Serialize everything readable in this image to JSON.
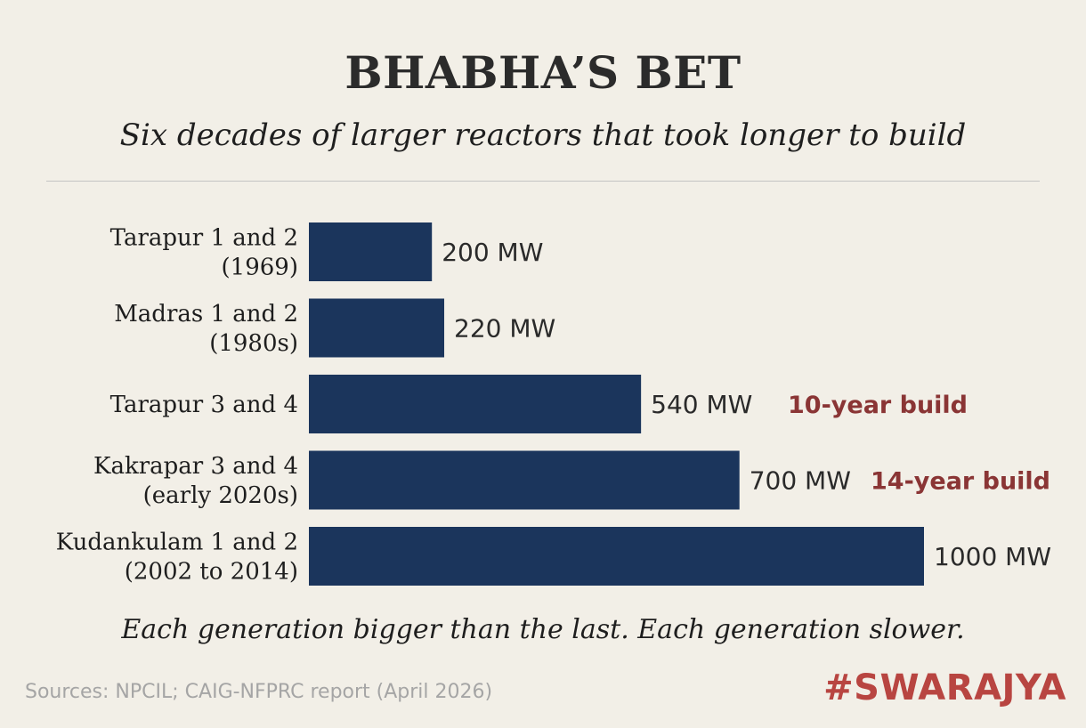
{
  "title": "BHABHA’S BET",
  "subtitle": "Six decades of larger reactors that took longer to build",
  "caption": "Each generation bigger than the last. Each generation slower.",
  "sources": "Sources: NPCIL; CAIG-NFPRC report (April 2026)",
  "brand": "#SWARAJYA",
  "colors": {
    "bar": "#1b355c",
    "note": "#8a3535",
    "brand": "#b84541",
    "background": "#f2efe7"
  },
  "chart_data": {
    "type": "bar",
    "orientation": "horizontal",
    "categories": [
      [
        "Tarapur 1 and 2",
        "(1969)"
      ],
      [
        "Madras 1 and 2",
        "(1980s)"
      ],
      [
        "Tarapur 3 and 4"
      ],
      [
        "Kakrapar 3 and 4",
        "(early 2020s)"
      ],
      [
        "Kudankulam 1 and 2",
        "(2002 to 2014)"
      ]
    ],
    "values": [
      200,
      220,
      540,
      700,
      1000
    ],
    "unit": "MW",
    "data_labels": [
      "200 MW",
      "220 MW",
      "540 MW",
      "700 MW",
      "1000 MW"
    ],
    "annotations": [
      "",
      "",
      "10-year build",
      "14-year build",
      ""
    ],
    "xlim": [
      0,
      1000
    ],
    "grid": false,
    "legend": "none"
  }
}
